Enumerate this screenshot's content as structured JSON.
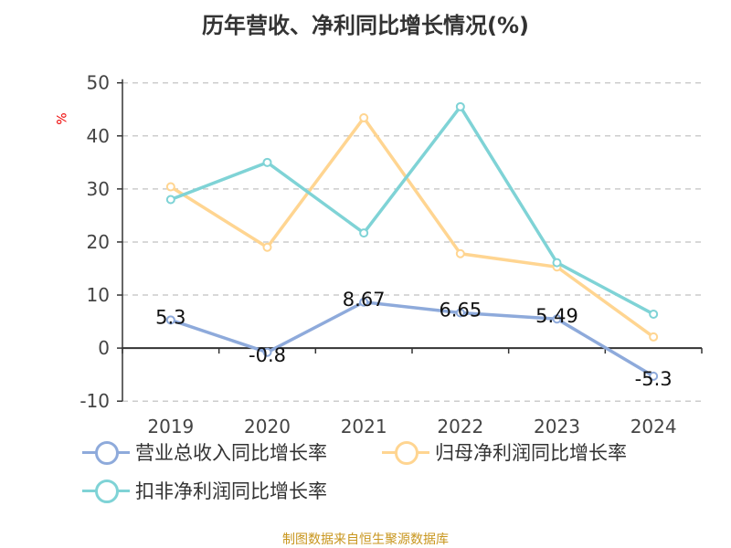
{
  "chart_data": {
    "type": "line",
    "title": "历年营收、净利同比增长情况(%)",
    "ylabel": "%",
    "categories": [
      "2019",
      "2020",
      "2021",
      "2022",
      "2023",
      "2024"
    ],
    "ylim": [
      -10,
      50
    ],
    "yticks": [
      -10,
      0,
      10,
      20,
      30,
      40,
      50
    ],
    "grid": true,
    "legend_placement": "bottom",
    "series": [
      {
        "name": "营业总收入同比增长率",
        "color": "#8eaadb",
        "values": [
          5.3,
          -0.8,
          8.67,
          6.65,
          5.49,
          -5.3
        ],
        "labels": [
          "5.3",
          "-0.8",
          "8.67",
          "6.65",
          "5.49",
          "-5.3"
        ]
      },
      {
        "name": "归母净利润同比增长率",
        "color": "#ffd591",
        "values": [
          30.4,
          19.0,
          43.4,
          17.8,
          15.3,
          2.1
        ]
      },
      {
        "name": "扣非净利润同比增长率",
        "color": "#7fd3d6",
        "values": [
          28.0,
          35.0,
          21.7,
          45.5,
          16.1,
          6.4
        ]
      }
    ]
  },
  "source": "制图数据来自恒生聚源数据库"
}
